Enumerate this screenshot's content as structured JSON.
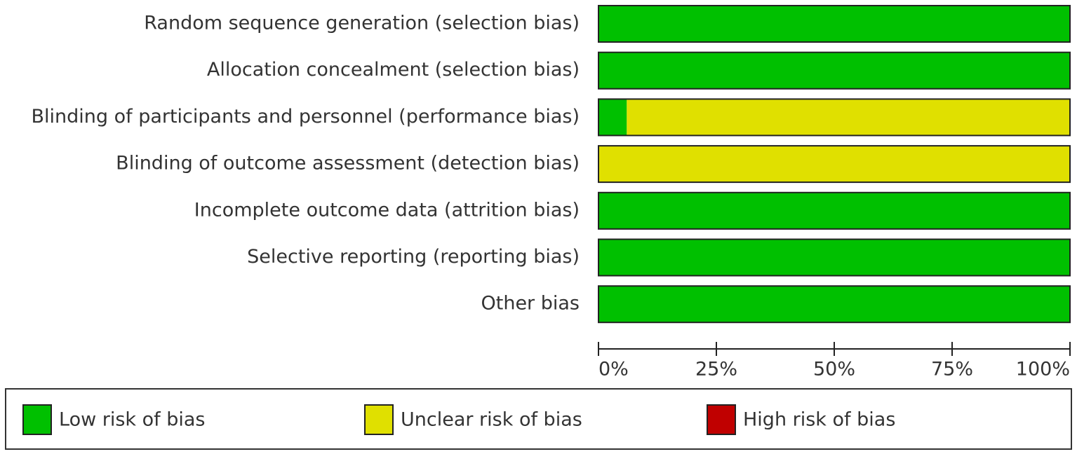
{
  "chart_data": {
    "type": "stacked-barh",
    "categories": [
      "Random sequence generation (selection bias)",
      "Allocation concealment (selection bias)",
      "Blinding of participants and personnel (performance bias)",
      "Blinding of outcome assessment (detection bias)",
      "Incomplete outcome data (attrition bias)",
      "Selective reporting (reporting bias)",
      "Other bias"
    ],
    "series": [
      {
        "name": "Low risk of bias",
        "color": "#00c000",
        "values": [
          100,
          100,
          6,
          0,
          100,
          100,
          100
        ]
      },
      {
        "name": "Unclear risk of bias",
        "color": "#e0e000",
        "values": [
          0,
          0,
          94,
          100,
          0,
          0,
          0
        ]
      },
      {
        "name": "High risk of bias",
        "color": "#c00000",
        "values": [
          0,
          0,
          0,
          0,
          0,
          0,
          0
        ]
      }
    ],
    "xlim": [
      0,
      100
    ],
    "xticks": [
      {
        "value": 0,
        "label": "0%"
      },
      {
        "value": 25,
        "label": "25%"
      },
      {
        "value": 50,
        "label": "50%"
      },
      {
        "value": 75,
        "label": "75%"
      },
      {
        "value": 100,
        "label": "100%"
      }
    ]
  }
}
